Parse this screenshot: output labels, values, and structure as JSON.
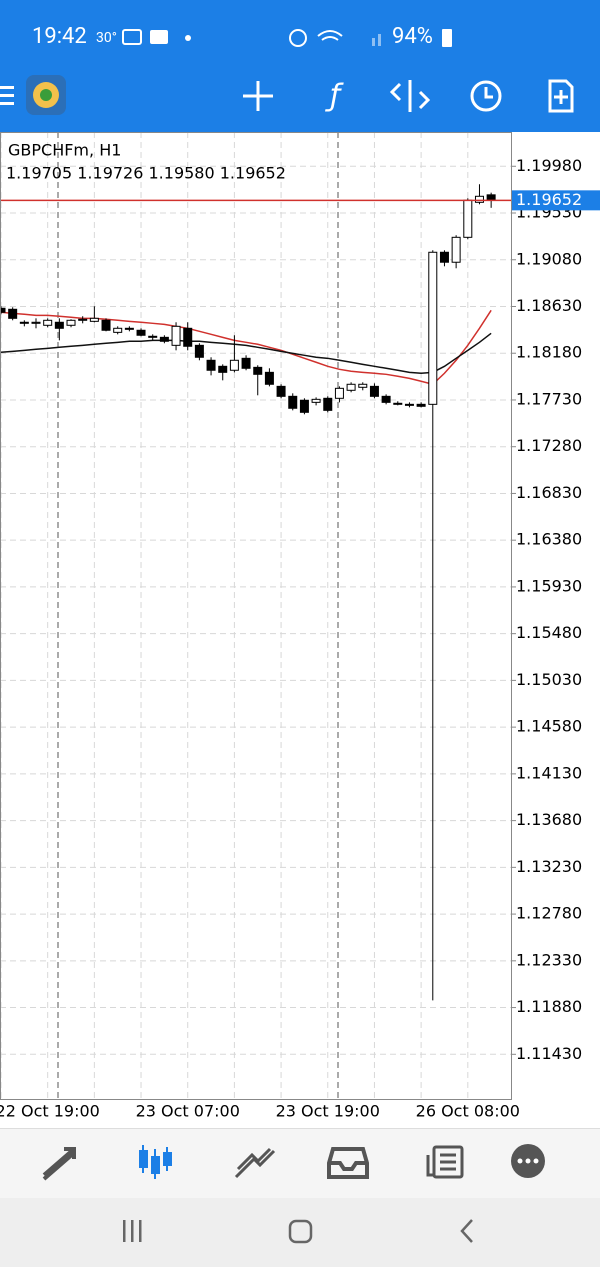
{
  "status_bar": {
    "time": "19:42",
    "temperature": "30°",
    "battery": "94%"
  },
  "chart_data": {
    "type": "candlestick",
    "title": "GBPCHFm, H1",
    "subtitle": "1.19705 1.19726 1.19580 1.19652",
    "categories": [
      null,
      null,
      null,
      null,
      "22 Oct 19:00",
      null,
      null,
      null,
      null,
      null,
      null,
      null,
      null,
      null,
      null,
      null,
      "23 Oct 07:00",
      null,
      null,
      null,
      null,
      null,
      null,
      null,
      null,
      null,
      null,
      null,
      "23 Oct 19:00",
      null,
      null,
      null,
      null,
      null,
      null,
      null,
      null,
      null,
      null,
      null,
      "26 Oct 08:00",
      null,
      null
    ],
    "open": [
      1.18613,
      1.18603,
      1.18478,
      1.18468,
      1.18449,
      1.18478,
      1.18449,
      1.18497,
      1.18487,
      1.18497,
      1.18381,
      1.1842,
      1.18401,
      1.18343,
      1.18333,
      1.18256,
      1.1842,
      1.18256,
      1.18112,
      1.18054,
      1.18016,
      1.18131,
      1.18044,
      1.17996,
      1.17861,
      1.17765,
      1.17727,
      1.17707,
      1.17746,
      1.17746,
      1.17823,
      1.17852,
      1.17861,
      1.17765,
      1.17698,
      1.17688,
      1.17688,
      1.17688,
      1.19152,
      1.19056,
      1.19296,
      1.19633,
      1.19705
    ],
    "high": [
      1.18632,
      1.18622,
      1.18497,
      1.18516,
      1.18516,
      1.18516,
      1.18507,
      1.18536,
      1.18632,
      1.18516,
      1.18439,
      1.18439,
      1.1842,
      1.18362,
      1.18353,
      1.18478,
      1.18478,
      1.18276,
      1.18141,
      1.18073,
      1.18353,
      1.1816,
      1.18064,
      1.18035,
      1.17881,
      1.17794,
      1.17746,
      1.17755,
      1.17765,
      1.17861,
      1.179,
      1.179,
      1.1789,
      1.17784,
      1.17717,
      1.17707,
      1.17707,
      1.19171,
      1.19171,
      1.19316,
      1.19672,
      1.19807,
      1.19726
    ],
    "low": [
      1.18555,
      1.18497,
      1.18439,
      1.1842,
      1.1843,
      1.18304,
      1.1843,
      1.18468,
      1.18478,
      1.18391,
      1.18362,
      1.18391,
      1.18343,
      1.18304,
      1.18276,
      1.18208,
      1.18208,
      1.18112,
      1.17967,
      1.17919,
      1.17996,
      1.18016,
      1.17775,
      1.17861,
      1.17746,
      1.1763,
      1.17592,
      1.17678,
      1.17611,
      1.17707,
      1.17804,
      1.17823,
      1.17746,
      1.17688,
      1.17678,
      1.17659,
      1.17659,
      1.11949,
      1.19017,
      1.18998,
      1.19277,
      1.19614,
      1.1958
    ],
    "close": [
      1.18574,
      1.18516,
      1.18468,
      1.18478,
      1.18497,
      1.1842,
      1.18497,
      1.18507,
      1.18516,
      1.18401,
      1.1842,
      1.1841,
      1.18353,
      1.18333,
      1.18295,
      1.18439,
      1.18247,
      1.18141,
      1.18016,
      1.17996,
      1.18112,
      1.18035,
      1.17977,
      1.17881,
      1.17765,
      1.1765,
      1.17611,
      1.17736,
      1.1763,
      1.17842,
      1.17881,
      1.17881,
      1.17765,
      1.17707,
      1.17688,
      1.17678,
      1.17669,
      1.19152,
      1.19056,
      1.19296,
      1.19653,
      1.19691,
      1.19652
    ],
    "up_color": "#ffffff",
    "down_color": "#000000",
    "lines": [
      {
        "color": "#d0312d",
        "values": [
          1.18574,
          1.18564,
          1.18555,
          1.18545,
          1.18545,
          1.18536,
          1.18526,
          1.18516,
          1.18516,
          1.18507,
          1.18497,
          1.18487,
          1.18478,
          1.18468,
          1.18458,
          1.18439,
          1.1842,
          1.18391,
          1.18362,
          1.18333,
          1.18304,
          1.18285,
          1.18266,
          1.18237,
          1.18208,
          1.1817,
          1.18131,
          1.18093,
          1.18054,
          1.18025,
          1.18006,
          1.17996,
          1.17987,
          1.17977,
          1.17958,
          1.17938,
          1.1791,
          1.17881,
          1.17987,
          1.18112,
          1.18256,
          1.1842,
          1.18593
        ]
      },
      {
        "color": "#111111",
        "values": [
          1.18189,
          1.18198,
          1.18208,
          1.18218,
          1.18227,
          1.18237,
          1.18247,
          1.18256,
          1.18266,
          1.18276,
          1.18285,
          1.18295,
          1.18295,
          1.18304,
          1.18304,
          1.18304,
          1.18295,
          1.18295,
          1.18285,
          1.18276,
          1.18266,
          1.18256,
          1.18237,
          1.18218,
          1.18198,
          1.18179,
          1.1816,
          1.18141,
          1.18131,
          1.18112,
          1.18093,
          1.18073,
          1.18054,
          1.18035,
          1.18016,
          1.17996,
          1.17987,
          1.17996,
          1.18054,
          1.18131,
          1.18208,
          1.18285,
          1.18372
        ]
      }
    ],
    "last_price": {
      "value": 1.19652,
      "label": "1.19652"
    },
    "last_price_color": "#d0312d",
    "ylim": [
      1.1099,
      1.2031
    ],
    "yticks": [
      {
        "value": 1.1998,
        "label": "1.19980"
      },
      {
        "value": 1.1953,
        "label": "1.19530"
      },
      {
        "value": 1.1908,
        "label": "1.19080"
      },
      {
        "value": 1.1863,
        "label": "1.18630"
      },
      {
        "value": 1.1818,
        "label": "1.18180"
      },
      {
        "value": 1.1773,
        "label": "1.17730"
      },
      {
        "value": 1.1728,
        "label": "1.17280"
      },
      {
        "value": 1.1683,
        "label": "1.16830"
      },
      {
        "value": 1.1638,
        "label": "1.16380"
      },
      {
        "value": 1.1593,
        "label": "1.15930"
      },
      {
        "value": 1.1548,
        "label": "1.15480"
      },
      {
        "value": 1.1503,
        "label": "1.15030"
      },
      {
        "value": 1.1458,
        "label": "1.14580"
      },
      {
        "value": 1.1413,
        "label": "1.14130"
      },
      {
        "value": 1.1368,
        "label": "1.13680"
      },
      {
        "value": 1.1323,
        "label": "1.13230"
      },
      {
        "value": 1.1278,
        "label": "1.12780"
      },
      {
        "value": 1.1233,
        "label": "1.12330"
      },
      {
        "value": 1.1188,
        "label": "1.11880"
      },
      {
        "value": 1.1143,
        "label": "1.11430"
      }
    ],
    "grid": true
  }
}
